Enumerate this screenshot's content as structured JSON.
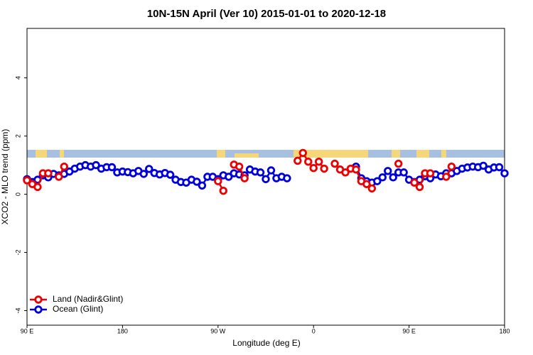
{
  "chart_data": {
    "type": "line",
    "title": "10N-15N April (Ver 10)   2015-01-01 to 2020-12-18",
    "x_label": "Longitude (deg E)",
    "y_label": "XCO2 - MLO trend (ppm)",
    "x": [
      90,
      95,
      100,
      105,
      110,
      115,
      120,
      125,
      130,
      135,
      140,
      145,
      150,
      155,
      160,
      165,
      170,
      175,
      180,
      185,
      190,
      195,
      200,
      205,
      210,
      215,
      220,
      225,
      230,
      235,
      240,
      245,
      250,
      255,
      260,
      265,
      270,
      275,
      280,
      285,
      290,
      295,
      300,
      305,
      310,
      315,
      320,
      325,
      330,
      335,
      340,
      345,
      350,
      355,
      360,
      365,
      370,
      375,
      380,
      385,
      390,
      395,
      400,
      405,
      410,
      415,
      420,
      425,
      430,
      435,
      440,
      445,
      450,
      455,
      460,
      465,
      470,
      475,
      480,
      485,
      490,
      495,
      500,
      505,
      510,
      515,
      520,
      525,
      530,
      535,
      540
    ],
    "series": [
      {
        "name": "Land (Nadir&Glint)",
        "color": "#ee0000",
        "values": [
          0.48,
          0.35,
          0.25,
          0.72,
          0.72,
          null,
          0.6,
          0.95,
          null,
          null,
          null,
          null,
          null,
          null,
          null,
          null,
          null,
          null,
          null,
          null,
          null,
          null,
          null,
          null,
          null,
          null,
          null,
          null,
          null,
          null,
          null,
          null,
          null,
          null,
          null,
          null,
          0.45,
          0.12,
          null,
          1.02,
          0.95,
          0.55,
          null,
          null,
          null,
          null,
          null,
          null,
          null,
          null,
          null,
          1.15,
          1.42,
          1.12,
          0.9,
          1.12,
          0.88,
          null,
          1.05,
          0.85,
          0.75,
          0.88,
          0.85,
          0.45,
          0.35,
          0.2,
          null,
          null,
          null,
          null,
          1.05,
          null,
          null,
          0.4,
          0.25,
          0.72,
          0.72,
          null,
          null,
          0.6,
          0.95,
          null,
          null,
          null,
          null,
          null,
          null,
          null,
          null,
          null,
          null
        ]
      },
      {
        "name": "Ocean (Glint)",
        "color": "#0000dd",
        "values": [
          0.52,
          0.42,
          0.5,
          0.65,
          0.58,
          0.7,
          0.65,
          0.7,
          0.78,
          0.88,
          0.95,
          1.0,
          0.95,
          1.0,
          0.88,
          0.93,
          0.93,
          0.75,
          0.78,
          0.76,
          0.72,
          0.8,
          0.7,
          0.87,
          0.73,
          0.68,
          0.73,
          0.67,
          0.5,
          0.42,
          0.4,
          0.5,
          0.43,
          0.3,
          0.6,
          0.6,
          0.52,
          0.65,
          0.6,
          0.72,
          0.68,
          0.65,
          0.85,
          0.78,
          0.75,
          0.52,
          0.82,
          0.55,
          0.6,
          0.55,
          null,
          null,
          null,
          null,
          null,
          null,
          null,
          null,
          null,
          null,
          null,
          null,
          0.95,
          0.55,
          0.45,
          0.4,
          0.45,
          0.58,
          0.8,
          0.58,
          0.75,
          0.75,
          0.5,
          0.42,
          0.5,
          0.62,
          0.55,
          0.68,
          0.62,
          0.72,
          0.72,
          0.8,
          0.88,
          0.92,
          0.95,
          0.93,
          0.98,
          0.85,
          0.92,
          0.93,
          0.72
        ]
      }
    ],
    "xlim": [
      90,
      540
    ],
    "xticks": [
      {
        "value": 90,
        "label": "90 E"
      },
      180,
      {
        "value": 270,
        "label": "90 W"
      },
      {
        "value": 360,
        "label": "0"
      },
      {
        "value": 450,
        "label": "90 E"
      },
      {
        "value": 540,
        "label": "180"
      }
    ],
    "ylim": [
      -4.5,
      5.7
    ],
    "yticks": [
      -4,
      -2,
      0,
      2,
      4
    ],
    "legend": "bottom-left"
  }
}
